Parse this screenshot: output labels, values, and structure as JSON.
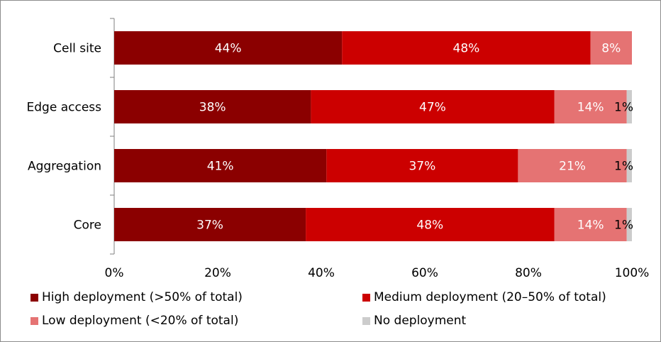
{
  "chart_data": {
    "type": "bar",
    "orientation": "horizontal",
    "stacked": true,
    "percent_stacked": true,
    "categories": [
      "Cell site",
      "Edge access",
      "Aggregation",
      "Core"
    ],
    "series": [
      {
        "name": "High deployment (>50% of total)",
        "color": "#8b0000",
        "values": [
          44,
          38,
          41,
          37
        ],
        "labels": [
          "44%",
          "38%",
          "41%",
          "37%"
        ]
      },
      {
        "name": "Medium deployment (20–50% of total)",
        "color": "#cc0000",
        "values": [
          48,
          47,
          37,
          48
        ],
        "labels": [
          "48%",
          "47%",
          "37%",
          "48%"
        ]
      },
      {
        "name": "Low deployment (<20% of total)",
        "color": "#e57373",
        "values": [
          8,
          14,
          21,
          14
        ],
        "labels": [
          "8%",
          "14%",
          "21%",
          "14%"
        ]
      },
      {
        "name": "No deployment",
        "color": "#cccccc",
        "values": [
          0,
          1,
          1,
          1
        ],
        "labels": [
          "",
          "1%",
          "1%",
          "1%"
        ]
      }
    ],
    "xlim": [
      0,
      100
    ],
    "xticks": [
      "0%",
      "20%",
      "40%",
      "60%",
      "80%",
      "100%"
    ],
    "title": "",
    "xlabel": "",
    "ylabel": "",
    "grid": false,
    "legend_position": "bottom"
  }
}
